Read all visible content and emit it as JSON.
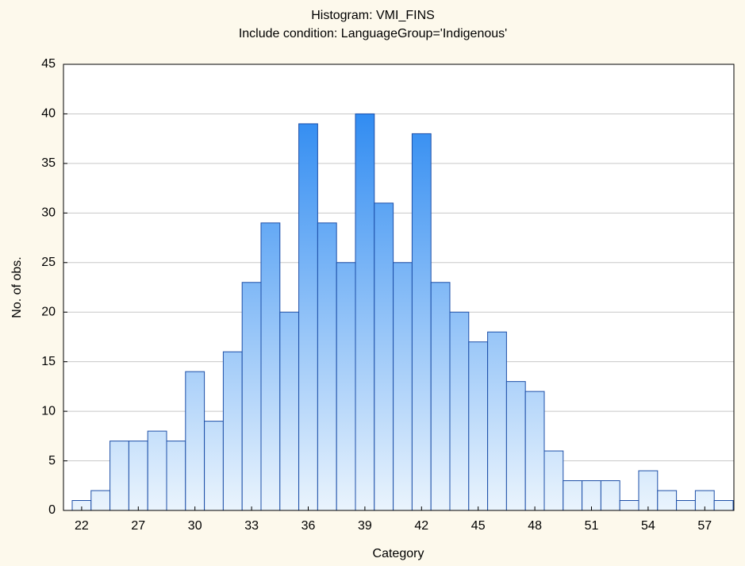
{
  "chart_data": {
    "type": "bar",
    "title": "Histogram: VMI_FINS",
    "subtitle": "Include condition: LanguageGroup='Indigenous'",
    "x_label": "Category",
    "y_label": "No. of obs.",
    "categories": [
      "22",
      null,
      null,
      "27",
      null,
      null,
      "30",
      null,
      null,
      "33",
      null,
      null,
      "36",
      null,
      null,
      "39",
      null,
      null,
      "42",
      null,
      null,
      "45",
      null,
      null,
      "48",
      null,
      null,
      "51",
      null,
      null,
      "54",
      null,
      null,
      "57",
      null
    ],
    "values": [
      1,
      2,
      7,
      7,
      8,
      7,
      14,
      9,
      16,
      23,
      29,
      20,
      39,
      29,
      25,
      40,
      31,
      25,
      38,
      23,
      20,
      17,
      18,
      13,
      12,
      6,
      3,
      3,
      3,
      1,
      4,
      2,
      1,
      2,
      1
    ],
    "color": "#1a7ff0",
    "ylim": [
      0,
      45
    ],
    "yticks": [
      0,
      5,
      10,
      15,
      20,
      25,
      30,
      35,
      40,
      45
    ],
    "grid": true
  }
}
